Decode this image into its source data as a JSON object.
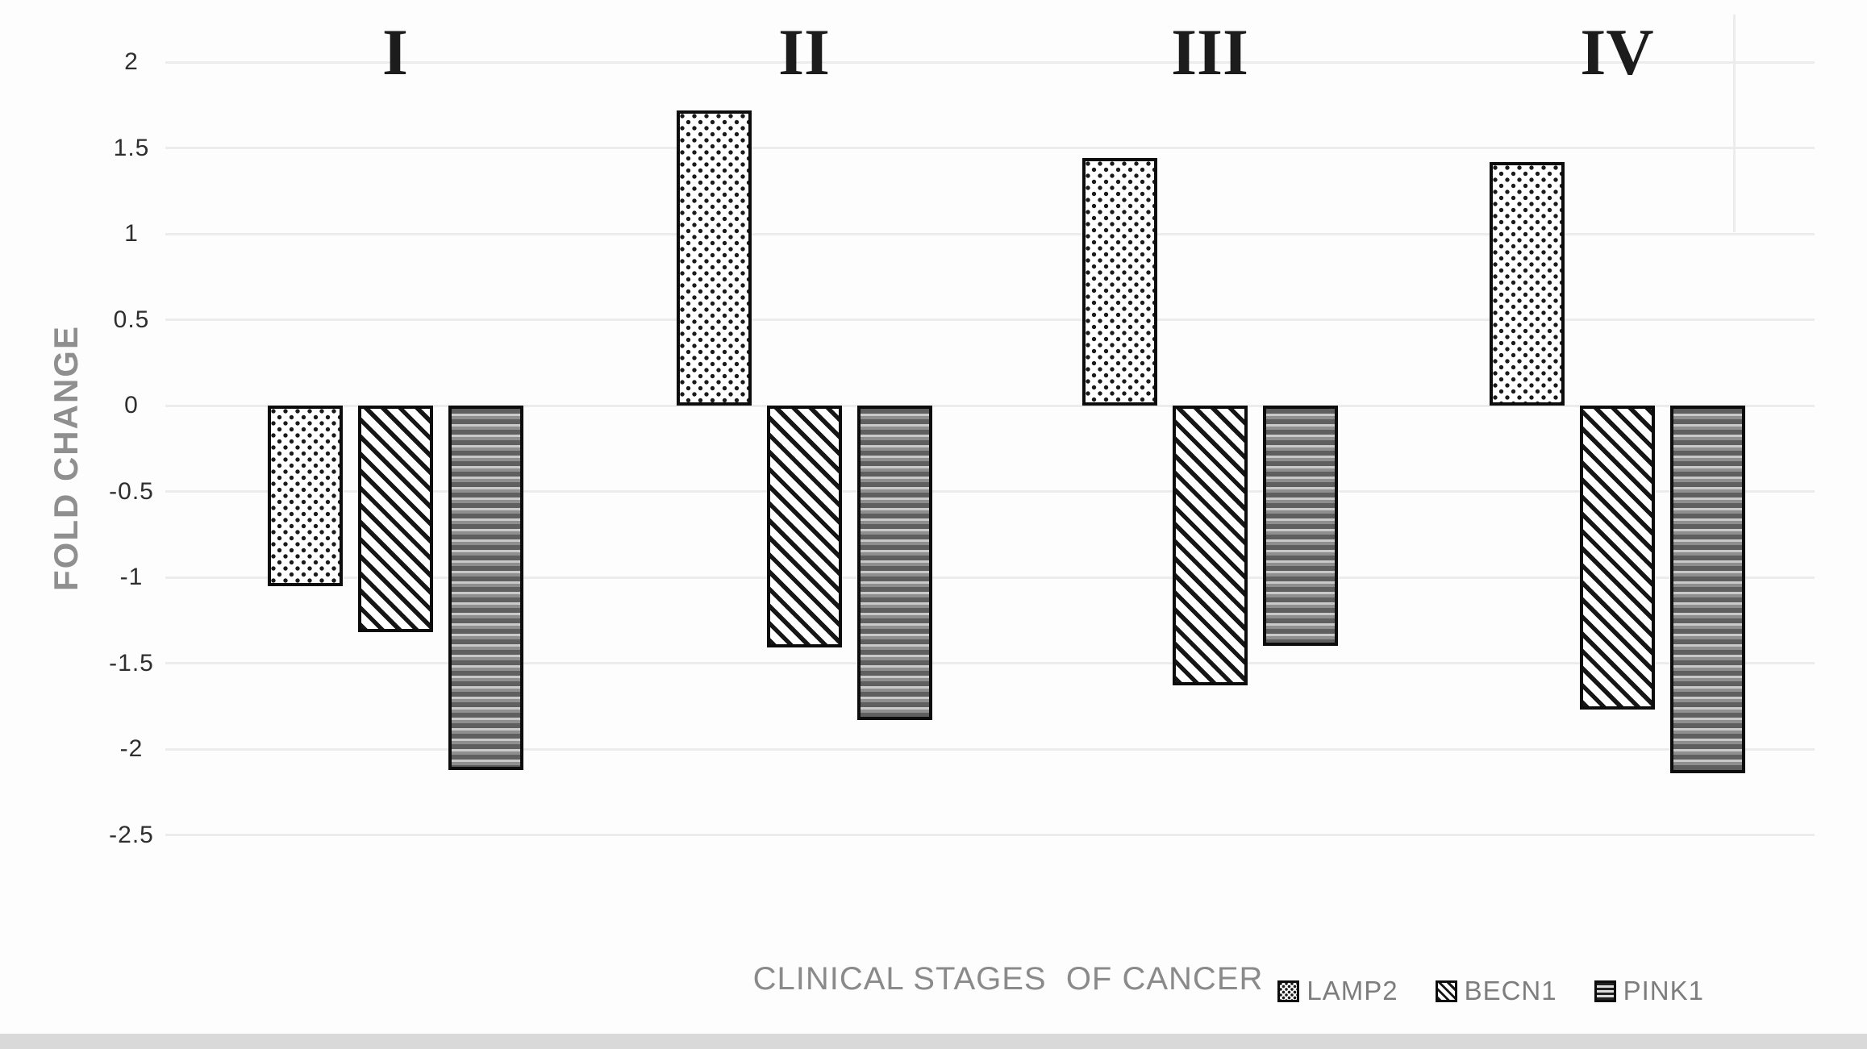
{
  "figure": {
    "background_color": "#fdfdfd",
    "footer_strip_color": "#d9d9d9",
    "gridline_color": "#ececec"
  },
  "chart_data": {
    "type": "bar",
    "title": "",
    "xlabel": "CLINICAL STAGES  OF CANCER",
    "ylabel": "FOLD CHANGE",
    "categories": [
      "I",
      "II",
      "III",
      "IV"
    ],
    "series": [
      {
        "name": "LAMP2",
        "pattern": "dots",
        "values": [
          -1.05,
          1.72,
          1.44,
          1.42
        ]
      },
      {
        "name": "BECN1",
        "pattern": "diagonal-stripes",
        "values": [
          -1.32,
          -1.41,
          -1.63,
          -1.77
        ]
      },
      {
        "name": "PINK1",
        "pattern": "horizontal-stripes",
        "values": [
          -2.12,
          -1.83,
          -1.4,
          -2.14
        ]
      }
    ],
    "ylim": [
      -2.5,
      2
    ],
    "ytick_step": 0.5,
    "yticks": [
      2,
      1.5,
      1,
      0.5,
      0,
      -0.5,
      -1,
      -1.5,
      -2,
      -2.5
    ],
    "grid": "horizontal",
    "legend_position": "bottom-right",
    "legend_entries": [
      "LAMP2",
      "BECN1",
      "PINK1"
    ]
  }
}
